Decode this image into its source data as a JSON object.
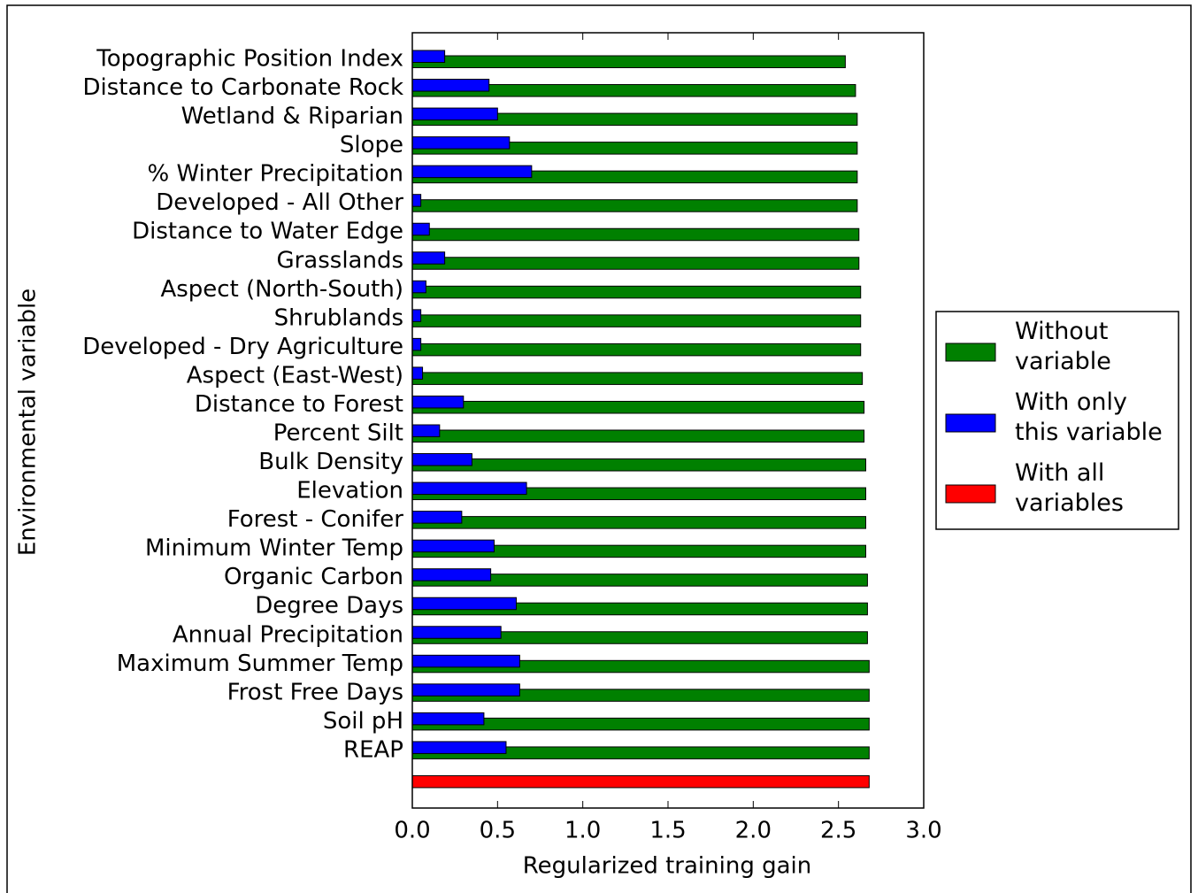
{
  "chart_data": {
    "type": "barh",
    "xlabel": "Regularized training gain",
    "ylabel": "Environmental variable",
    "categories": [
      "Topographic Position Index",
      "Distance to Carbonate Rock",
      "Wetland & Riparian",
      "Slope",
      "% Winter Precipitation",
      "Developed - All Other",
      "Distance to Water Edge",
      "Grasslands",
      "Aspect (North-South)",
      "Shrublands",
      "Developed - Dry Agriculture",
      "Aspect (East-West)",
      "Distance to Forest",
      "Percent Silt",
      "Bulk Density",
      "Elevation",
      "Forest - Conifer",
      "Minimum Winter Temp",
      "Organic Carbon",
      "Degree Days",
      "Annual Precipitation",
      "Maximum Summer Temp",
      "Frost Free Days",
      "Soil pH",
      "REAP",
      null
    ],
    "series": [
      {
        "name": "Without variable",
        "color": "#008000",
        "values": [
          2.54,
          2.6,
          2.61,
          2.61,
          2.61,
          2.61,
          2.62,
          2.62,
          2.63,
          2.63,
          2.63,
          2.64,
          2.65,
          2.65,
          2.66,
          2.66,
          2.66,
          2.66,
          2.67,
          2.67,
          2.67,
          2.68,
          2.68,
          2.68,
          2.68,
          null
        ]
      },
      {
        "name": "With only this variable",
        "color": "#0000ff",
        "values": [
          0.19,
          0.45,
          0.5,
          0.57,
          0.7,
          0.05,
          0.1,
          0.19,
          0.08,
          0.05,
          0.05,
          0.06,
          0.3,
          0.16,
          0.35,
          0.67,
          0.29,
          0.48,
          0.46,
          0.61,
          0.52,
          0.63,
          0.63,
          0.42,
          0.55,
          null
        ]
      },
      {
        "name": "With all variables",
        "color": "#ff0000",
        "values": [
          null,
          null,
          null,
          null,
          null,
          null,
          null,
          null,
          null,
          null,
          null,
          null,
          null,
          null,
          null,
          null,
          null,
          null,
          null,
          null,
          null,
          null,
          null,
          null,
          null,
          2.68
        ]
      }
    ],
    "xlim": [
      0,
      3.0
    ],
    "xticks": [
      {
        "value": 0,
        "label": "0.0"
      },
      0.5,
      {
        "value": 1,
        "label": "1.0"
      },
      1.5,
      {
        "value": 2,
        "label": "2.0"
      },
      2.5,
      {
        "value": 3,
        "label": "3.0"
      }
    ],
    "legend": "right"
  }
}
